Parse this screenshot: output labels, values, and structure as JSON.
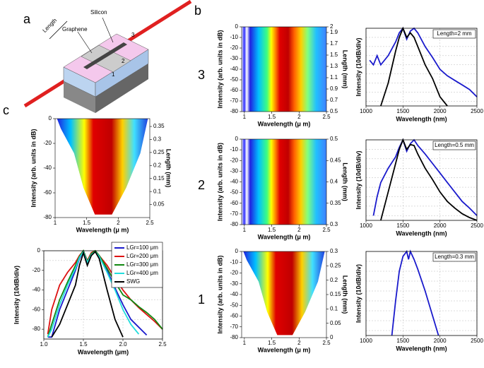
{
  "figure": {
    "panel_labels": [
      "a",
      "b",
      "c"
    ],
    "row_labels": [
      "3",
      "2",
      "1"
    ],
    "diagram": {
      "silicon": "Silicon",
      "graphene": "Graphene",
      "length": "Length",
      "regions": [
        "1",
        "2",
        "3"
      ]
    }
  },
  "chart_data": [
    {
      "type": "heatmap",
      "xlabel": "Wavelength (μ m)",
      "ylabel": "Intensity (arb. units in dB)",
      "y2label": "Length (mm)",
      "xlim": [
        0.95,
        2.5
      ],
      "xticks": [
        1,
        1.5,
        2,
        2.5
      ],
      "ylim": [
        -80,
        0
      ],
      "yticks": [
        0,
        -10,
        -20,
        -30,
        -40,
        -50,
        -60,
        -70,
        -80
      ],
      "y2lim": [
        0.5,
        2
      ],
      "y2ticks": [
        2,
        1.9,
        1.7,
        1.5,
        1.3,
        1.1,
        0.9,
        0.7,
        0.5
      ]
    },
    {
      "type": "line",
      "xlabel": "Wavelength (nm)",
      "ylabel": "Intensity (10dB/div)",
      "annotation": "Length=2 mm",
      "xlim": [
        1000,
        2500
      ],
      "xticks": [
        1000,
        1500,
        2000,
        2500
      ],
      "ylim": [
        -85,
        0
      ],
      "ygrid": [
        -10,
        -20,
        -30,
        -40,
        -50,
        -60,
        -70,
        -80
      ],
      "grid": true,
      "x": [
        1050,
        1100,
        1150,
        1200,
        1300,
        1400,
        1450,
        1500,
        1550,
        1600,
        1650,
        1700,
        1800,
        1900,
        2000,
        2100,
        2200,
        2300,
        2400,
        2500
      ],
      "series": [
        {
          "color": "#1a1acc",
          "values": [
            -35,
            -40,
            -30,
            -40,
            -30,
            -15,
            -5,
            0,
            -12,
            -3,
            0,
            -5,
            -20,
            -32,
            -45,
            -52,
            -57,
            -62,
            -67,
            -75
          ]
        },
        {
          "color": "#000000",
          "values": [
            null,
            null,
            null,
            -85,
            -60,
            -25,
            -10,
            0,
            -10,
            -5,
            -10,
            -20,
            -40,
            -55,
            -75,
            -85,
            null,
            null,
            null,
            null
          ]
        }
      ]
    },
    {
      "type": "heatmap",
      "xlabel": "Wavelength (μ m)",
      "ylabel": "Intensity (arb. units in dB)",
      "y2label": "Length (mm)",
      "xlim": [
        0.95,
        2.5
      ],
      "xticks": [
        1,
        1.5,
        2,
        2.5
      ],
      "ylim": [
        -80,
        0
      ],
      "yticks": [
        0,
        -10,
        -20,
        -30,
        -40,
        -50,
        -60,
        -70,
        -80
      ],
      "y2lim": [
        0.3,
        0.5
      ],
      "y2ticks": [
        0.5,
        0.45,
        0.4,
        0.35,
        0.3
      ]
    },
    {
      "type": "line",
      "xlabel": "Wavelength (nm)",
      "ylabel": "Intensity (10dB/div)",
      "annotation": "Length=0.5 mm",
      "xlim": [
        1000,
        2500
      ],
      "xticks": [
        1000,
        1500,
        2000,
        2500
      ],
      "ylim": [
        -85,
        0
      ],
      "ygrid": [
        -10,
        -20,
        -30,
        -40,
        -50,
        -60,
        -70,
        -80
      ],
      "grid": true,
      "x": [
        1050,
        1100,
        1150,
        1200,
        1300,
        1400,
        1450,
        1500,
        1550,
        1600,
        1650,
        1700,
        1800,
        1900,
        2000,
        2100,
        2200,
        2300,
        2400,
        2500
      ],
      "series": [
        {
          "color": "#1a1acc",
          "values": [
            null,
            -80,
            -60,
            -45,
            -30,
            -18,
            -8,
            0,
            -12,
            -4,
            0,
            -6,
            -15,
            -25,
            -35,
            -45,
            -55,
            -65,
            -72,
            -80
          ]
        },
        {
          "color": "#000000",
          "values": [
            null,
            null,
            null,
            -85,
            -55,
            -25,
            -10,
            0,
            -10,
            -5,
            -6,
            -15,
            -30,
            -42,
            -55,
            -65,
            -72,
            -78,
            -82,
            -85
          ]
        }
      ]
    },
    {
      "type": "heatmap",
      "xlabel": "Wavelength (μ m)",
      "ylabel": "Intensity (arb. units in dB)",
      "y2label": "Length (mm)",
      "xlim": [
        0.95,
        2.5
      ],
      "xticks": [
        1,
        1.5,
        2,
        2.5
      ],
      "ylim": [
        -80,
        0
      ],
      "yticks": [
        0,
        -10,
        -20,
        -30,
        -40,
        -50,
        -60,
        -70,
        -80
      ],
      "y2lim": [
        0,
        0.3
      ],
      "y2ticks": [
        0.3,
        0.25,
        0.2,
        0.15,
        0.1,
        0.05,
        0
      ],
      "funnel": true
    },
    {
      "type": "line",
      "xlabel": "Wavelength (nm)",
      "ylabel": "Intensity (10dB/div)",
      "annotation": "Length=0.3 mm",
      "xlim": [
        1000,
        2500
      ],
      "xticks": [
        1000,
        1500,
        2000,
        2500
      ],
      "ylim": [
        -85,
        0
      ],
      "ygrid": [
        -10,
        -20,
        -30,
        -40,
        -50,
        -60,
        -70,
        -80
      ],
      "grid": true,
      "x": [
        1350,
        1400,
        1450,
        1500,
        1550,
        1575,
        1600,
        1650,
        1700,
        1800,
        1900,
        1980
      ],
      "series": [
        {
          "color": "#1a1acc",
          "values": [
            -85,
            -50,
            -20,
            -5,
            0,
            -8,
            0,
            -8,
            -18,
            -40,
            -65,
            -85
          ]
        }
      ]
    },
    {
      "type": "heatmap",
      "xlabel": "Wavelength (μ m)",
      "ylabel": "Intensity (arb. units in dB)",
      "y2label": "Length (mm)",
      "xlim": [
        1,
        2.5
      ],
      "xticks": [
        1,
        1.5,
        2,
        2.5
      ],
      "ylim": [
        -80,
        0
      ],
      "yticks": [
        0,
        -20,
        -40,
        -60,
        -80
      ],
      "y2lim": [
        0,
        0.38
      ],
      "y2ticks": [
        0.35,
        0.3,
        0.25,
        0.2,
        0.15,
        0.1,
        0.05
      ],
      "funnel": true
    },
    {
      "type": "line",
      "xlabel": "Wavelength (μm)",
      "ylabel": "Intensity (10dB/div)",
      "xlim": [
        1,
        2.5
      ],
      "xticks": [
        {
          "value": 1,
          "label": "1.0"
        },
        1.5,
        {
          "value": 2,
          "label": "2.0"
        },
        2.5
      ],
      "ylim": [
        -90,
        0
      ],
      "yticks": [
        0,
        -20,
        -40,
        -60,
        -80
      ],
      "ygrid": [
        -10,
        -30,
        -50,
        -70
      ],
      "grid": true,
      "x": [
        1.05,
        1.1,
        1.2,
        1.3,
        1.4,
        1.45,
        1.5,
        1.55,
        1.6,
        1.65,
        1.7,
        1.8,
        1.9,
        2.0,
        2.1,
        2.2,
        2.3,
        2.4,
        2.5
      ],
      "series": [
        {
          "name": "LGr=100 μm",
          "color": "#1a1acc",
          "values": [
            -88,
            -88,
            -60,
            -40,
            -20,
            -8,
            -1,
            -12,
            -4,
            -1,
            -6,
            -20,
            -38,
            -55,
            -70,
            -78,
            -86,
            null,
            null
          ]
        },
        {
          "name": "LGr=200 μm",
          "color": "#dd1111",
          "values": [
            -85,
            -60,
            -35,
            -22,
            -12,
            -5,
            0,
            -10,
            -2,
            0,
            -5,
            -15,
            -28,
            -40,
            -50,
            -58,
            -65,
            -72,
            -80
          ]
        },
        {
          "name": "LGr=300 μm",
          "color": "#118811",
          "values": [
            -88,
            -75,
            -50,
            -32,
            -15,
            -6,
            0,
            -11,
            -3,
            0,
            -5,
            -18,
            -32,
            -45,
            -50,
            -57,
            -63,
            -70,
            -80
          ]
        },
        {
          "name": "LGr=400 μm",
          "color": "#22dddd",
          "values": [
            -88,
            -80,
            -55,
            -35,
            -18,
            -7,
            -1,
            -12,
            -4,
            -1,
            -6,
            -22,
            -40,
            -60,
            -75,
            -85,
            null,
            null,
            null
          ]
        },
        {
          "name": "SWG",
          "color": "#000000",
          "values": [
            null,
            -88,
            -75,
            -55,
            -35,
            -15,
            -2,
            -15,
            -5,
            -1,
            -8,
            -40,
            -70,
            -88,
            null,
            null,
            null,
            null,
            null
          ]
        }
      ]
    }
  ]
}
